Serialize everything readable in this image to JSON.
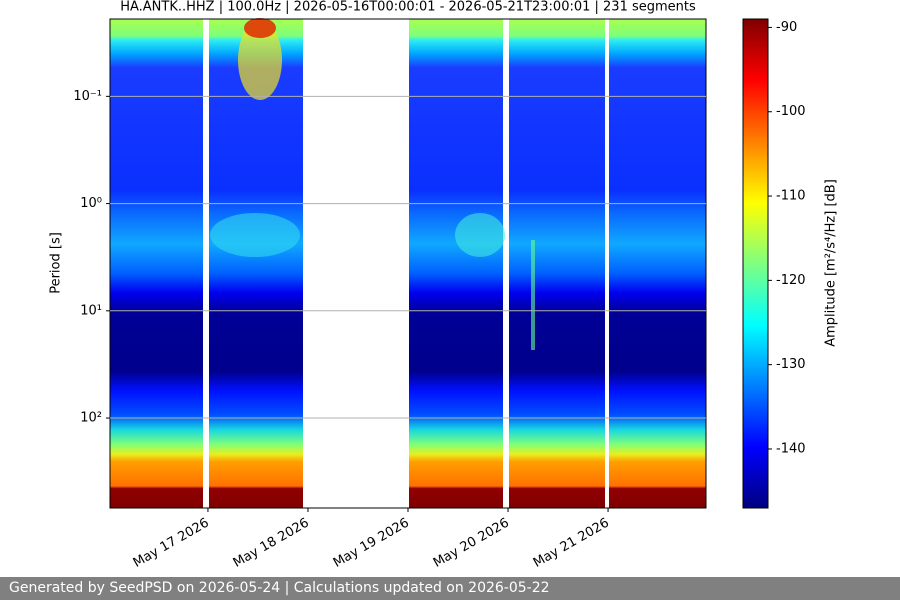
{
  "chart_data": {
    "type": "spectrogram",
    "title": "HA.ANTK..HHZ | 100.0Hz | 2026-05-16T00:00:01 - 2026-05-21T23:00:01 | 231 segments",
    "y_label": "Period [s]",
    "log_y": true,
    "y_inverted": true,
    "ylim": [
      0.019,
      690
    ],
    "yticks": [
      {
        "value": 0.1,
        "label": "10⁻¹"
      },
      {
        "value": 1,
        "label": "10⁰"
      },
      {
        "value": 10,
        "label": "10¹"
      },
      {
        "value": 100,
        "label": "10²"
      }
    ],
    "xlim": [
      "2026-05-16T00:30",
      "2026-05-21T23:30"
    ],
    "xticks": [
      {
        "value": "2026-05-17",
        "label": "May 17 2026"
      },
      {
        "value": "2026-05-18",
        "label": "May 18 2026"
      },
      {
        "value": "2026-05-19",
        "label": "May 19 2026"
      },
      {
        "value": "2026-05-20",
        "label": "May 20 2026"
      },
      {
        "value": "2026-05-21",
        "label": "May 21 2026"
      }
    ],
    "grid": "y",
    "colorbar": {
      "label": "Amplitude [m²/s⁴/Hz] [dB]",
      "colormap": "jet",
      "clim": [
        -147,
        -89
      ],
      "ticks": [
        -90,
        -100,
        -110,
        -120,
        -130,
        -140
      ]
    }
  },
  "footer": "Generated by SeedPSD on 2026-05-24 | Calculations updated on 2026-05-22"
}
